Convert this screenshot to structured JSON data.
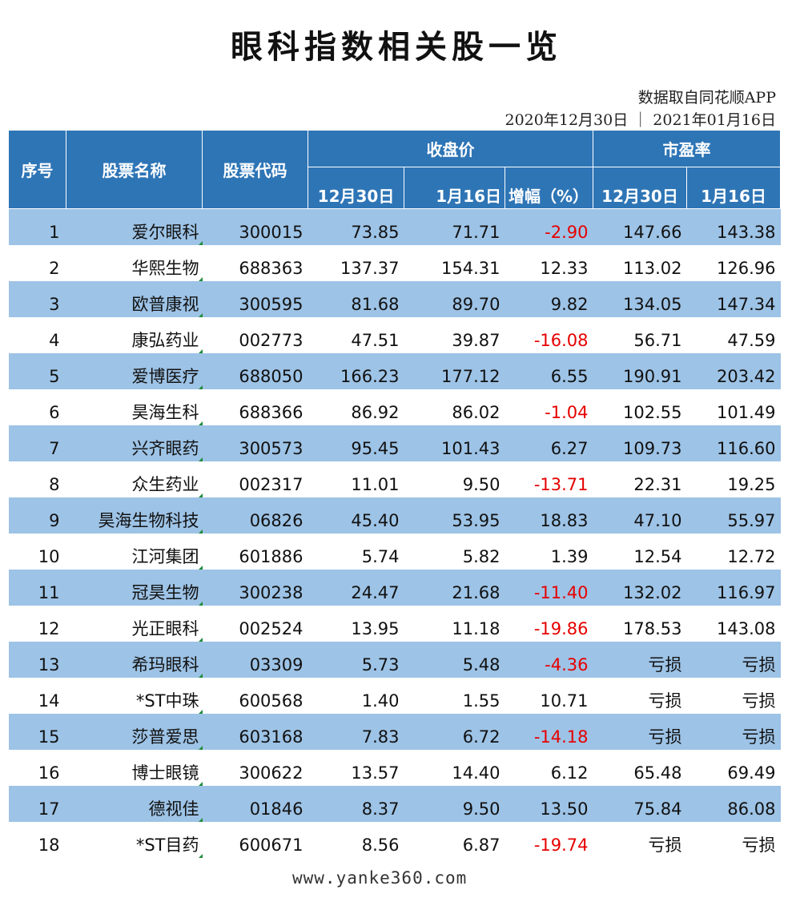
{
  "title": "眼科指数相关股一览",
  "source": "数据取自同花顺APP",
  "dates": "2020年12月30日 ｜ 2021年01月16日",
  "headers": {
    "seq": "序号",
    "name": "股票名称",
    "code": "股票代码",
    "close_group": "收盘价",
    "pe_group": "市盈率",
    "close_dec30": "12月30日",
    "close_jan16": "1月16日",
    "change": "增幅（%）",
    "pe_dec30": "12月30日",
    "pe_jan16": "1月16日"
  },
  "colors": {
    "header_bg": "#2e75b6",
    "stripe_bg": "#9dc3e6",
    "negative": "#e60000"
  },
  "rows": [
    {
      "seq": "1",
      "name": "爱尔眼科",
      "code": "300015",
      "c1": "73.85",
      "c2": "71.71",
      "chg": "-2.90",
      "neg": true,
      "pe1": "147.66",
      "pe2": "143.38"
    },
    {
      "seq": "2",
      "name": "华熙生物",
      "code": "688363",
      "c1": "137.37",
      "c2": "154.31",
      "chg": "12.33",
      "neg": false,
      "pe1": "113.02",
      "pe2": "126.96"
    },
    {
      "seq": "3",
      "name": "欧普康视",
      "code": "300595",
      "c1": "81.68",
      "c2": "89.70",
      "chg": "9.82",
      "neg": false,
      "pe1": "134.05",
      "pe2": "147.34"
    },
    {
      "seq": "4",
      "name": "康弘药业",
      "code": "002773",
      "c1": "47.51",
      "c2": "39.87",
      "chg": "-16.08",
      "neg": true,
      "pe1": "56.71",
      "pe2": "47.59"
    },
    {
      "seq": "5",
      "name": "爱博医疗",
      "code": "688050",
      "c1": "166.23",
      "c2": "177.12",
      "chg": "6.55",
      "neg": false,
      "pe1": "190.91",
      "pe2": "203.42"
    },
    {
      "seq": "6",
      "name": "昊海生科",
      "code": "688366",
      "c1": "86.92",
      "c2": "86.02",
      "chg": "-1.04",
      "neg": true,
      "pe1": "102.55",
      "pe2": "101.49"
    },
    {
      "seq": "7",
      "name": "兴齐眼药",
      "code": "300573",
      "c1": "95.45",
      "c2": "101.43",
      "chg": "6.27",
      "neg": false,
      "pe1": "109.73",
      "pe2": "116.60"
    },
    {
      "seq": "8",
      "name": "众生药业",
      "code": "002317",
      "c1": "11.01",
      "c2": "9.50",
      "chg": "-13.71",
      "neg": true,
      "pe1": "22.31",
      "pe2": "19.25"
    },
    {
      "seq": "9",
      "name": "昊海生物科技",
      "code": "06826",
      "c1": "45.40",
      "c2": "53.95",
      "chg": "18.83",
      "neg": false,
      "pe1": "47.10",
      "pe2": "55.97"
    },
    {
      "seq": "10",
      "name": "江河集团",
      "code": "601886",
      "c1": "5.74",
      "c2": "5.82",
      "chg": "1.39",
      "neg": false,
      "pe1": "12.54",
      "pe2": "12.72"
    },
    {
      "seq": "11",
      "name": "冠昊生物",
      "code": "300238",
      "c1": "24.47",
      "c2": "21.68",
      "chg": "-11.40",
      "neg": true,
      "pe1": "132.02",
      "pe2": "116.97"
    },
    {
      "seq": "12",
      "name": "光正眼科",
      "code": "002524",
      "c1": "13.95",
      "c2": "11.18",
      "chg": "-19.86",
      "neg": true,
      "pe1": "178.53",
      "pe2": "143.08"
    },
    {
      "seq": "13",
      "name": "希玛眼科",
      "code": "03309",
      "c1": "5.73",
      "c2": "5.48",
      "chg": "-4.36",
      "neg": true,
      "pe1": "亏损",
      "pe2": "亏损"
    },
    {
      "seq": "14",
      "name": "*ST中珠",
      "code": "600568",
      "c1": "1.40",
      "c2": "1.55",
      "chg": "10.71",
      "neg": false,
      "pe1": "亏损",
      "pe2": "亏损"
    },
    {
      "seq": "15",
      "name": "莎普爱思",
      "code": "603168",
      "c1": "7.83",
      "c2": "6.72",
      "chg": "-14.18",
      "neg": true,
      "pe1": "亏损",
      "pe2": "亏损"
    },
    {
      "seq": "16",
      "name": "博士眼镜",
      "code": "300622",
      "c1": "13.57",
      "c2": "14.40",
      "chg": "6.12",
      "neg": false,
      "pe1": "65.48",
      "pe2": "69.49"
    },
    {
      "seq": "17",
      "name": "德视佳",
      "code": "01846",
      "c1": "8.37",
      "c2": "9.50",
      "chg": "13.50",
      "neg": false,
      "pe1": "75.84",
      "pe2": "86.08"
    },
    {
      "seq": "18",
      "name": "*ST目药",
      "code": "600671",
      "c1": "8.56",
      "c2": "6.87",
      "chg": "-19.74",
      "neg": true,
      "pe1": "亏损",
      "pe2": "亏损"
    }
  ],
  "footer": "www.yanke360.com"
}
